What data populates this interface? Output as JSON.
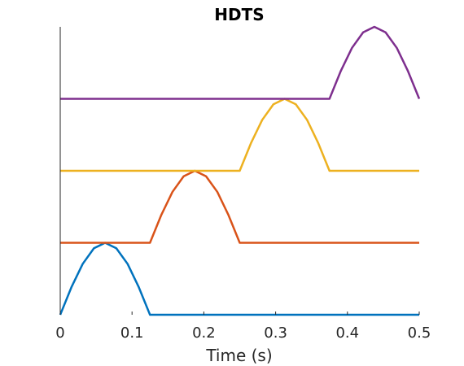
{
  "chart_data": {
    "type": "line",
    "title": "HDTS",
    "xlabel": "Time (s)",
    "ylabel": "",
    "xlim": [
      0,
      0.5
    ],
    "ylim": [
      0,
      4
    ],
    "grid": false,
    "legend": "none",
    "x_ticks": [
      0,
      0.1,
      0.2,
      0.3,
      0.4,
      0.5
    ],
    "x_tick_labels": [
      "0",
      "0.1",
      "0.2",
      "0.3",
      "0.4",
      "0.5"
    ],
    "y_tick_labels": [],
    "series": [
      {
        "color": "#0072BD",
        "baseline": 0,
        "x": [
          0,
          0.0156,
          0.0313,
          0.0469,
          0.0625,
          0.0781,
          0.0938,
          0.1094,
          0.125,
          0.5
        ],
        "values": [
          0,
          0.383,
          0.707,
          0.924,
          1.0,
          0.924,
          0.707,
          0.383,
          0,
          0
        ]
      },
      {
        "color": "#D95319",
        "baseline": 1,
        "x": [
          0,
          0.125,
          0.1406,
          0.1563,
          0.1719,
          0.1875,
          0.2031,
          0.2188,
          0.2344,
          0.25,
          0.5
        ],
        "values": [
          1,
          1,
          1.383,
          1.707,
          1.924,
          2.0,
          1.924,
          1.707,
          1.383,
          1,
          1
        ]
      },
      {
        "color": "#EDB120",
        "baseline": 2,
        "x": [
          0,
          0.25,
          0.2656,
          0.2813,
          0.2969,
          0.3125,
          0.3281,
          0.3438,
          0.3594,
          0.375,
          0.5
        ],
        "values": [
          2,
          2,
          2.383,
          2.707,
          2.924,
          3.0,
          2.924,
          2.707,
          2.383,
          2,
          2
        ]
      },
      {
        "color": "#7E2F8E",
        "baseline": 3,
        "x": [
          0,
          0.375,
          0.3906,
          0.4063,
          0.4219,
          0.4375,
          0.4531,
          0.4688,
          0.4844,
          0.5
        ],
        "values": [
          3,
          3,
          3.383,
          3.707,
          3.924,
          4.0,
          3.924,
          3.707,
          3.383,
          3
        ]
      }
    ]
  }
}
